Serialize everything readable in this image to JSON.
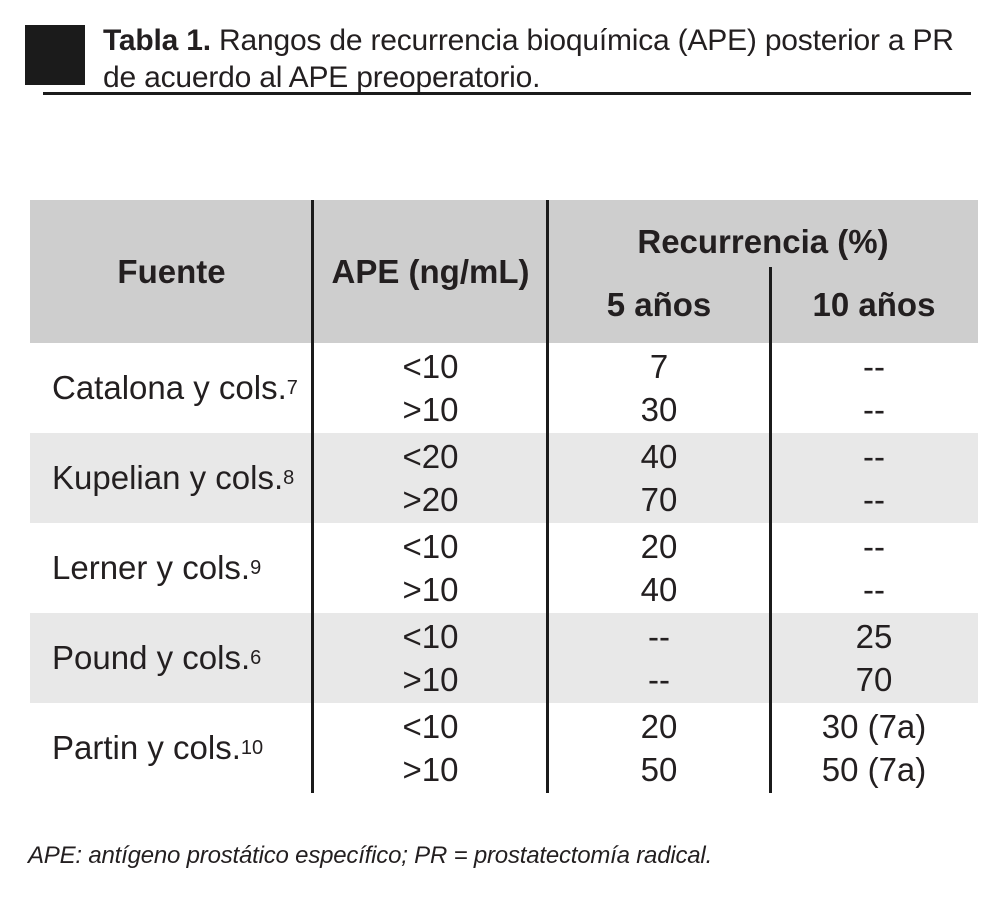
{
  "caption": {
    "label": "Tabla 1.",
    "text": "Rangos de recurrencia bioquímica (APE) posterior a PR de acuerdo al APE preoperatorio."
  },
  "table": {
    "columns": {
      "fuente": "Fuente",
      "ape": "APE (ng/mL)",
      "recurrencia": "Recurrencia (%)",
      "anos5": "5 años",
      "anos10": "10 años"
    },
    "rows": [
      {
        "fuente": "Catalona y cols.",
        "ref": "7",
        "ape": [
          "<10",
          ">10"
        ],
        "anos5": [
          "7",
          "30"
        ],
        "anos10": [
          "--",
          "--"
        ]
      },
      {
        "fuente": "Kupelian y cols.",
        "ref": "8",
        "ape": [
          "<20",
          ">20"
        ],
        "anos5": [
          "40",
          "70"
        ],
        "anos10": [
          "--",
          "--"
        ]
      },
      {
        "fuente": "Lerner y cols.",
        "ref": "9",
        "ape": [
          "<10",
          ">10"
        ],
        "anos5": [
          "20",
          "40"
        ],
        "anos10": [
          "--",
          "--"
        ]
      },
      {
        "fuente": "Pound y cols.",
        "ref": "6",
        "ape": [
          "<10",
          ">10"
        ],
        "anos5": [
          "--",
          "--"
        ],
        "anos10": [
          "25",
          "70"
        ]
      },
      {
        "fuente": "Partin y cols.",
        "ref": "10",
        "ape": [
          "<10",
          ">10"
        ],
        "anos5": [
          "20",
          "50"
        ],
        "anos10": [
          "30 (7a)",
          "50 (7a)"
        ]
      }
    ]
  },
  "footnote": "APE: antígeno prostático específico; PR = prostatectomía radical.",
  "colors": {
    "header_bg": "#cecece",
    "row_alt_bg": "#e8e8e8",
    "text": "#231f20",
    "rule": "#1b1b1b"
  }
}
